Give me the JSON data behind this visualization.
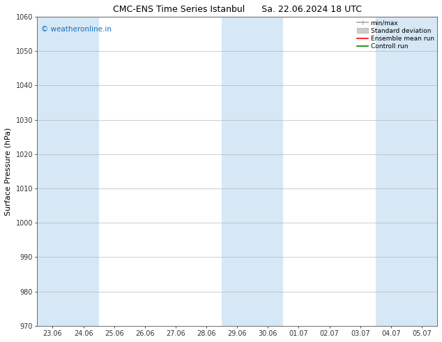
{
  "title": "CMC-ENS Time Series Istanbul",
  "title2": "Sa. 22.06.2024 18 UTC",
  "ylabel": "Surface Pressure (hPa)",
  "ylim": [
    970,
    1060
  ],
  "yticks": [
    970,
    980,
    990,
    1000,
    1010,
    1020,
    1030,
    1040,
    1050,
    1060
  ],
  "xtick_labels": [
    "23.06",
    "24.06",
    "25.06",
    "26.06",
    "27.06",
    "28.06",
    "29.06",
    "30.06",
    "01.07",
    "02.07",
    "03.07",
    "04.07",
    "05.07"
  ],
  "shaded_indices": [
    0,
    1,
    6,
    7,
    11,
    12
  ],
  "shaded_color": "#d6e8f5",
  "background_color": "#ffffff",
  "watermark": "© weatheronline.in",
  "watermark_color": "#1a6ebd",
  "legend_labels": [
    "min/max",
    "Standard deviation",
    "Ensemble mean run",
    "Controll run"
  ],
  "legend_line_colors": [
    "#aaaaaa",
    "#bbbbbb",
    "#ff0000",
    "#008000"
  ],
  "grid_color": "#aaaaaa",
  "spine_color": "#555555",
  "title_fontsize": 9,
  "axis_fontsize": 7,
  "ylabel_fontsize": 8
}
